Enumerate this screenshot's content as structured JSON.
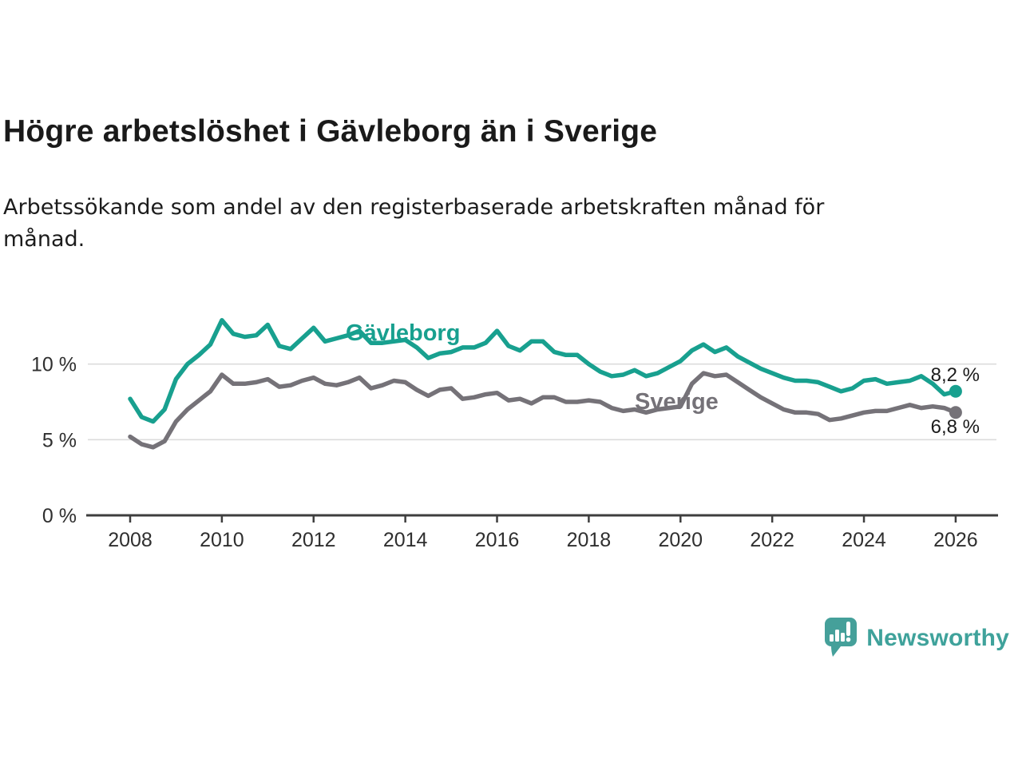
{
  "title": "Högre arbetslöshet i Gävleborg än i Sverige",
  "subtitle_lines": [
    "Arbetssökande som andel av den registerbaserade arbetskraften månad för",
    "månad."
  ],
  "branding": {
    "name": "Newsworthy"
  },
  "colors": {
    "gavleborg": "#18a08f",
    "sverige": "#757278",
    "grid": "#dcdcdc",
    "axis": "#3e3e3e",
    "axis_text": "#2f2f2f",
    "value_label_text": "#1b1b1b",
    "brand": "#3fa29b",
    "background": "#ffffff"
  },
  "chart_data": {
    "type": "line",
    "title": "Högre arbetslöshet i Gävleborg än i Sverige",
    "subtitle": "Arbetssökande som andel av den registerbaserade arbetskraften månad för månad.",
    "unit": "%",
    "grid": "horizontal",
    "legend_position": "inline-labels",
    "xlim": [
      2007.1,
      2026.9
    ],
    "ylim": [
      0,
      13.8
    ],
    "x_ticks": [
      2008,
      2010,
      2012,
      2014,
      2016,
      2018,
      2020,
      2022,
      2024,
      2026
    ],
    "y_ticks": [
      {
        "value": 0,
        "label": "0 %"
      },
      {
        "value": 5,
        "label": "5 %"
      },
      {
        "value": 10,
        "label": "10 %"
      }
    ],
    "x": [
      2008,
      2008.25,
      2008.5,
      2008.75,
      2009,
      2009.25,
      2009.5,
      2009.75,
      2010,
      2010.25,
      2010.5,
      2010.75,
      2011,
      2011.25,
      2011.5,
      2011.75,
      2012,
      2012.25,
      2012.5,
      2012.75,
      2013,
      2013.25,
      2013.5,
      2013.75,
      2014,
      2014.25,
      2014.5,
      2014.75,
      2015,
      2015.25,
      2015.5,
      2015.75,
      2016,
      2016.25,
      2016.5,
      2016.75,
      2017,
      2017.25,
      2017.5,
      2017.75,
      2018,
      2018.25,
      2018.5,
      2018.75,
      2019,
      2019.25,
      2019.5,
      2019.75,
      2020,
      2020.25,
      2020.5,
      2020.75,
      2021,
      2021.25,
      2021.5,
      2021.75,
      2022,
      2022.25,
      2022.5,
      2022.75,
      2023,
      2023.25,
      2023.5,
      2023.75,
      2024,
      2024.25,
      2024.5,
      2024.75,
      2025,
      2025.25,
      2025.5,
      2025.75,
      2026
    ],
    "series": [
      {
        "name": "Gävleborg",
        "color": "#18a08f",
        "end_label": "8,2 %",
        "end_value": 8.2,
        "values": [
          7.7,
          6.5,
          6.2,
          7.0,
          9.0,
          10.0,
          10.6,
          11.3,
          12.9,
          12.0,
          11.8,
          11.9,
          12.6,
          11.2,
          11.0,
          11.7,
          12.4,
          11.5,
          11.7,
          11.9,
          12.2,
          11.4,
          11.4,
          11.5,
          11.6,
          11.1,
          10.4,
          10.7,
          10.8,
          11.1,
          11.1,
          11.4,
          12.2,
          11.2,
          10.9,
          11.5,
          11.5,
          10.8,
          10.6,
          10.6,
          10.0,
          9.5,
          9.2,
          9.3,
          9.6,
          9.2,
          9.4,
          9.8,
          10.2,
          10.9,
          11.3,
          10.8,
          11.1,
          10.5,
          10.1,
          9.7,
          9.4,
          9.1,
          8.9,
          8.9,
          8.8,
          8.5,
          8.2,
          8.4,
          8.9,
          9.0,
          8.7,
          8.8,
          8.9,
          9.2,
          8.7,
          8.0,
          8.2
        ]
      },
      {
        "name": "Sverige",
        "color": "#757278",
        "end_label": "6,8 %",
        "end_value": 6.8,
        "values": [
          5.2,
          4.7,
          4.5,
          4.9,
          6.2,
          7.0,
          7.6,
          8.2,
          9.3,
          8.7,
          8.7,
          8.8,
          9.0,
          8.5,
          8.6,
          8.9,
          9.1,
          8.7,
          8.6,
          8.8,
          9.1,
          8.4,
          8.6,
          8.9,
          8.8,
          8.3,
          7.9,
          8.3,
          8.4,
          7.7,
          7.8,
          8.0,
          8.1,
          7.6,
          7.7,
          7.4,
          7.8,
          7.8,
          7.5,
          7.5,
          7.6,
          7.5,
          7.1,
          6.9,
          7.0,
          6.8,
          7.0,
          7.1,
          7.2,
          8.7,
          9.4,
          9.2,
          9.3,
          8.8,
          8.3,
          7.8,
          7.4,
          7.0,
          6.8,
          6.8,
          6.7,
          6.3,
          6.4,
          6.6,
          6.8,
          6.9,
          6.9,
          7.1,
          7.3,
          7.1,
          7.2,
          7.1,
          6.8
        ]
      }
    ]
  }
}
